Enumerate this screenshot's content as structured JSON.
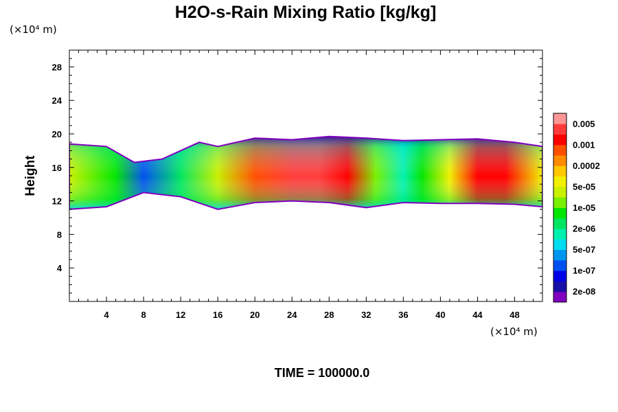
{
  "chart_data": {
    "type": "heatmap",
    "title": "H2O-s-Rain Mixing Ratio [kg/kg]",
    "xlabel": "",
    "ylabel": "Height",
    "x_unit": "(×10⁴ m)",
    "y_unit": "(×10⁴ m)",
    "xlim": [
      0,
      51
    ],
    "ylim": [
      0,
      30
    ],
    "x_ticks": [
      4,
      8,
      12,
      16,
      20,
      24,
      28,
      32,
      36,
      40,
      44,
      48
    ],
    "y_ticks": [
      4,
      8,
      12,
      16,
      20,
      24,
      28
    ],
    "colorbar": {
      "colors": [
        "#7f00bf",
        "#1a0ea8",
        "#0000e6",
        "#0050f0",
        "#0096f0",
        "#00dcf0",
        "#00f0b0",
        "#00e660",
        "#00e600",
        "#78f000",
        "#c8f000",
        "#f0f000",
        "#ffc800",
        "#ff8c00",
        "#ff5000",
        "#ff0000",
        "#ff3c3c",
        "#ff9696"
      ],
      "labels": [
        "2e-08",
        "1e-07",
        "5e-07",
        "2e-06",
        "1e-05",
        "5e-05",
        "0.0002",
        "0.001",
        "0.005"
      ]
    },
    "field_profile": [
      {
        "x": 0,
        "level": 10
      },
      {
        "x": 2,
        "level": 9
      },
      {
        "x": 5,
        "level": 8
      },
      {
        "x": 8,
        "level": 3
      },
      {
        "x": 12,
        "level": 7
      },
      {
        "x": 16,
        "level": 10
      },
      {
        "x": 20,
        "level": 14
      },
      {
        "x": 24,
        "level": 16
      },
      {
        "x": 27,
        "level": 16
      },
      {
        "x": 30,
        "level": 15
      },
      {
        "x": 33,
        "level": 9
      },
      {
        "x": 36,
        "level": 6
      },
      {
        "x": 38,
        "level": 8
      },
      {
        "x": 41,
        "level": 11
      },
      {
        "x": 44,
        "level": 15
      },
      {
        "x": 47,
        "level": 15
      },
      {
        "x": 51,
        "level": 11
      }
    ],
    "field_top": [
      {
        "x": 0,
        "y": 18.8
      },
      {
        "x": 4,
        "y": 18.5
      },
      {
        "x": 7,
        "y": 16.6
      },
      {
        "x": 10,
        "y": 17.0
      },
      {
        "x": 14,
        "y": 19.0
      },
      {
        "x": 16,
        "y": 18.5
      },
      {
        "x": 20,
        "y": 19.5
      },
      {
        "x": 24,
        "y": 19.3
      },
      {
        "x": 28,
        "y": 19.7
      },
      {
        "x": 32,
        "y": 19.5
      },
      {
        "x": 36,
        "y": 19.2
      },
      {
        "x": 40,
        "y": 19.3
      },
      {
        "x": 44,
        "y": 19.4
      },
      {
        "x": 48,
        "y": 19.0
      },
      {
        "x": 51,
        "y": 18.5
      }
    ],
    "field_bottom": [
      {
        "x": 0,
        "y": 11.0
      },
      {
        "x": 4,
        "y": 11.3
      },
      {
        "x": 8,
        "y": 13.0
      },
      {
        "x": 12,
        "y": 12.5
      },
      {
        "x": 16,
        "y": 11.0
      },
      {
        "x": 20,
        "y": 11.8
      },
      {
        "x": 24,
        "y": 12.0
      },
      {
        "x": 28,
        "y": 11.8
      },
      {
        "x": 32,
        "y": 11.2
      },
      {
        "x": 36,
        "y": 11.8
      },
      {
        "x": 40,
        "y": 11.7
      },
      {
        "x": 44,
        "y": 11.7
      },
      {
        "x": 48,
        "y": 11.6
      },
      {
        "x": 51,
        "y": 11.3
      }
    ]
  },
  "footer": {
    "time_label": "TIME = 100000.0"
  }
}
